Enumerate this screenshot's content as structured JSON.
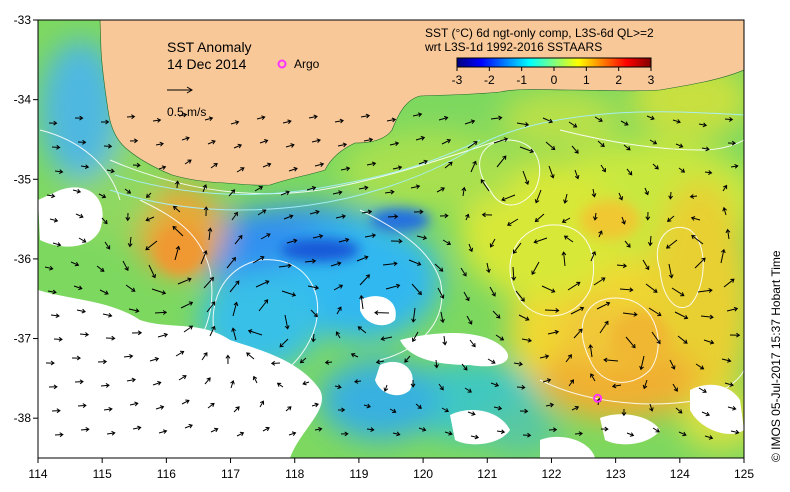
{
  "map": {
    "title": "SST Anomaly",
    "date": "14 Dec 2014",
    "argo_label": "Argo",
    "scale_label": "0.5 m/s",
    "product_line1": "SST (°C) 6d ngt-only comp, L3S-6d QL>=2",
    "product_line2": "wrt L3S-1d 1992-2016 SSTAARS",
    "credit": "© IMOS 05-Jul-2017 15:37 Hobart Time",
    "land_color": "#f8c898",
    "argo_color": "#ff33ff",
    "argo_position": {
      "lon": 122.72,
      "lat": -37.75
    },
    "colorbar": {
      "min": -3,
      "max": 3,
      "ticks": [
        "-3",
        "-2",
        "-1",
        "0",
        "1",
        "2",
        "3"
      ],
      "colors": [
        "#00007f",
        "#0000ff",
        "#007fff",
        "#00ffff",
        "#7fff7f",
        "#ffff00",
        "#ff7f00",
        "#ff0000",
        "#7f0000"
      ]
    },
    "lon_ticks": [
      "114",
      "115",
      "116",
      "117",
      "118",
      "119",
      "120",
      "121",
      "122",
      "123",
      "124",
      "125"
    ],
    "lat_ticks": [
      "-33",
      "-34",
      "-35",
      "-36",
      "-37",
      "-38"
    ],
    "extent": {
      "lon_min": 114,
      "lon_max": 125,
      "lat_min": -38.5,
      "lat_max": -33
    }
  }
}
